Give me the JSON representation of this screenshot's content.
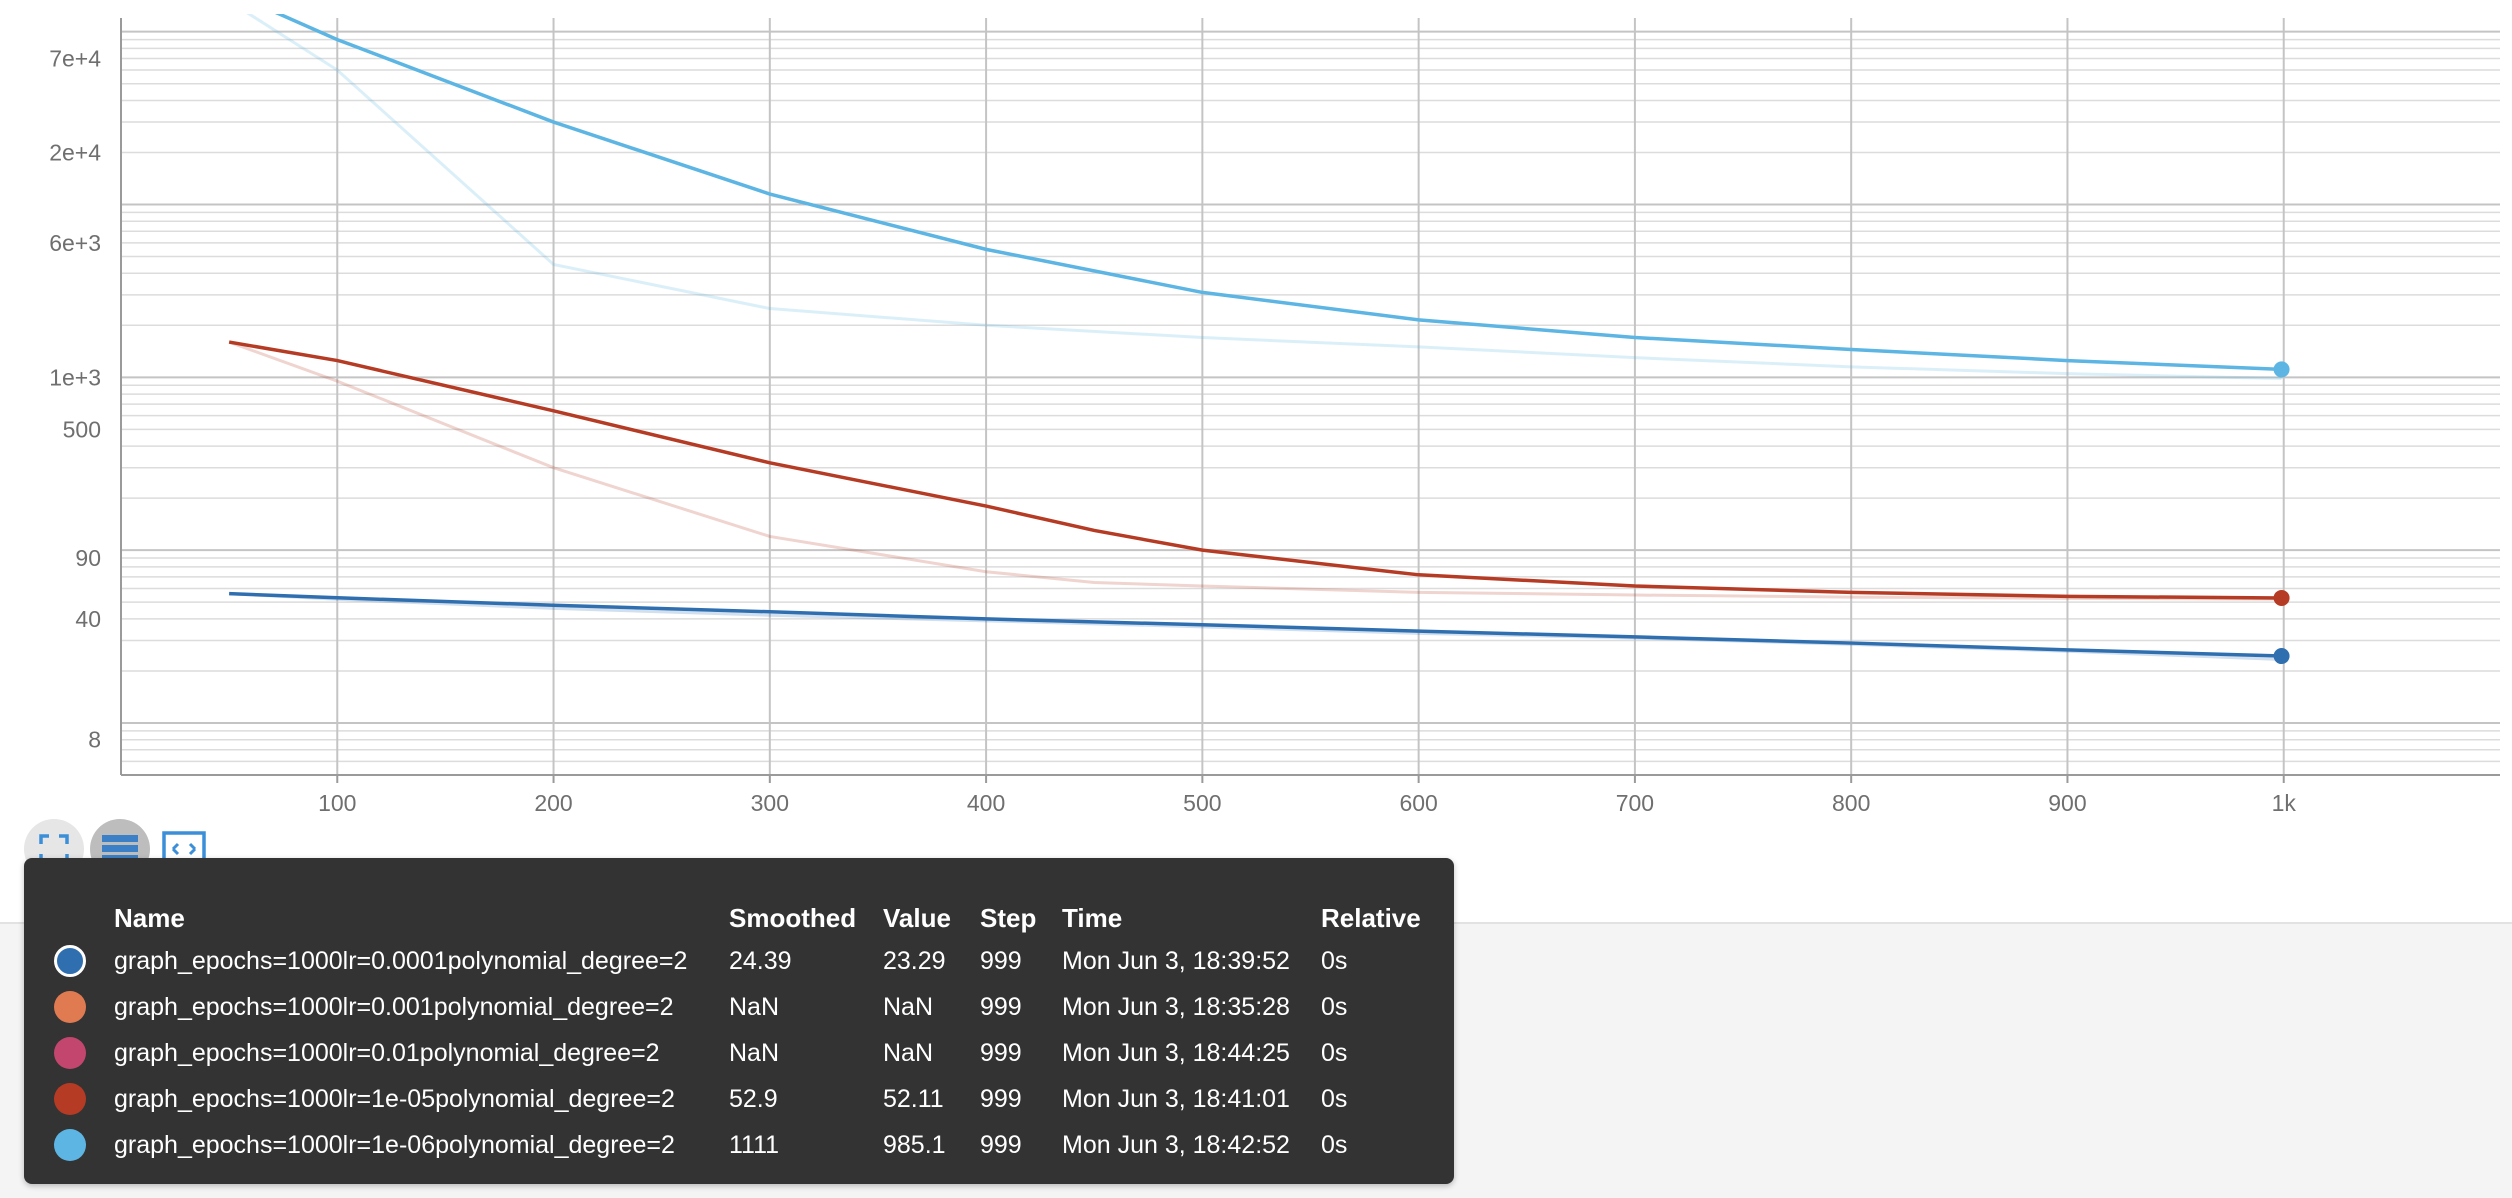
{
  "chart_data": {
    "type": "line",
    "xlabel": "",
    "ylabel": "",
    "y_scale": "log",
    "xlim": [
      0,
      1100
    ],
    "ylim": [
      5,
      120000
    ],
    "grid": true,
    "x_ticks": [
      100,
      200,
      300,
      400,
      500,
      600,
      700,
      800,
      900,
      1000
    ],
    "x_tick_labels": [
      "100",
      "200",
      "300",
      "400",
      "500",
      "600",
      "700",
      "800",
      "900",
      "1k"
    ],
    "y_ticks": [
      8,
      40,
      90,
      500,
      1000,
      6000,
      20000,
      70000
    ],
    "y_tick_labels": [
      "8",
      "40",
      "90",
      "500",
      "1e+3",
      "6e+3",
      "2e+4",
      "7e+4"
    ],
    "series": [
      {
        "name": "graph_epochs=1000lr=0.0001polynomial_degree=2",
        "color": "#2f6fb0",
        "x": [
          50,
          100,
          200,
          300,
          400,
          500,
          600,
          700,
          800,
          900,
          999
        ],
        "smoothed": [
          56,
          53,
          48,
          44,
          40,
          37,
          34,
          31.5,
          29,
          26.5,
          24.39
        ],
        "raw": [
          56,
          52,
          46,
          42,
          39,
          36,
          33,
          31,
          28.5,
          26,
          23.29
        ]
      },
      {
        "name": "graph_epochs=1000lr=0.001polynomial_degree=2",
        "color": "#e07a51",
        "x": [],
        "smoothed": [],
        "raw": []
      },
      {
        "name": "graph_epochs=1000lr=0.01polynomial_degree=2",
        "color": "#c2466d",
        "x": [],
        "smoothed": [],
        "raw": []
      },
      {
        "name": "graph_epochs=1000lr=1e-05polynomial_degree=2",
        "color": "#b53b24",
        "x": [
          50,
          100,
          200,
          300,
          400,
          450,
          500,
          600,
          700,
          800,
          900,
          999
        ],
        "smoothed": [
          1600,
          1250,
          640,
          320,
          180,
          130,
          100,
          72,
          62,
          57,
          54,
          52.9
        ],
        "raw": [
          1600,
          950,
          300,
          120,
          75,
          65,
          62,
          57,
          55,
          53.5,
          52.6,
          52.11
        ]
      },
      {
        "name": "graph_epochs=1000lr=1e-06polynomial_degree=2",
        "color": "#5cb5e3",
        "x": [
          50,
          100,
          200,
          300,
          400,
          500,
          600,
          700,
          800,
          900,
          999
        ],
        "smoothed": [
          170000,
          90000,
          30000,
          11500,
          5500,
          3100,
          2150,
          1700,
          1450,
          1250,
          1111
        ],
        "raw": [
          150000,
          60000,
          4500,
          2500,
          2000,
          1700,
          1500,
          1300,
          1150,
          1050,
          985.1
        ]
      }
    ]
  },
  "controls": {
    "fullscreen_icon": "fullscreen-icon",
    "data_table_icon": "data-table-icon",
    "fit_domain_icon": "fit-domain-icon"
  },
  "tooltip": {
    "headers": {
      "name": "Name",
      "smoothed": "Smoothed",
      "value": "Value",
      "step": "Step",
      "time": "Time",
      "relative": "Relative"
    },
    "rows": [
      {
        "color": "#2f6fb0",
        "selected": true,
        "name": "graph_epochs=1000lr=0.0001polynomial_degree=2",
        "smoothed": "24.39",
        "value": "23.29",
        "step": "999",
        "time": "Mon Jun 3, 18:39:52",
        "relative": "0s"
      },
      {
        "color": "#e07a51",
        "selected": false,
        "name": "graph_epochs=1000lr=0.001polynomial_degree=2",
        "smoothed": "NaN",
        "value": "NaN",
        "step": "999",
        "time": "Mon Jun 3, 18:35:28",
        "relative": "0s"
      },
      {
        "color": "#c2466d",
        "selected": false,
        "name": "graph_epochs=1000lr=0.01polynomial_degree=2",
        "smoothed": "NaN",
        "value": "NaN",
        "step": "999",
        "time": "Mon Jun 3, 18:44:25",
        "relative": "0s"
      },
      {
        "color": "#b53b24",
        "selected": false,
        "name": "graph_epochs=1000lr=1e-05polynomial_degree=2",
        "smoothed": "52.9",
        "value": "52.11",
        "step": "999",
        "time": "Mon Jun 3, 18:41:01",
        "relative": "0s"
      },
      {
        "color": "#5cb5e3",
        "selected": false,
        "name": "graph_epochs=1000lr=1e-06polynomial_degree=2",
        "smoothed": "1111",
        "value": "985.1",
        "step": "999",
        "time": "Mon Jun 3, 18:42:52",
        "relative": "0s"
      }
    ]
  }
}
